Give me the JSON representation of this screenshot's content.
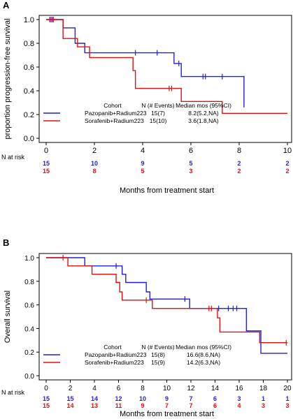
{
  "colors": {
    "blue": "#1f1fe0",
    "red": "#e01010",
    "axis": "#000000"
  },
  "chart_data": [
    {
      "type": "line",
      "panel_label": "A",
      "title": "",
      "xlabel": "Months from treatment start",
      "ylabel": "proportion progression-free survival",
      "xlim": [
        0,
        10
      ],
      "ylim": [
        0,
        1
      ],
      "x_ticks": [
        0,
        2,
        4,
        6,
        8,
        10
      ],
      "y_ticks": [
        0.0,
        0.2,
        0.4,
        0.6,
        0.8,
        1.0
      ],
      "grid": false,
      "legend": {
        "position": "lower-left",
        "header": {
          "cohort": "Cohort",
          "n": "N (# Events)",
          "mos": "Median mos (95%CI)"
        },
        "rows": [
          {
            "label": "Pazopanib+Radium223",
            "n": "15(7)",
            "mos": "8.2(5.2,NA)",
            "color": "#1f1fe0"
          },
          {
            "label": "Sorafenib+Radium223",
            "n": "15(10)",
            "mos": "3.6(1.8,NA)",
            "color": "#e01010"
          }
        ]
      },
      "series": [
        {
          "name": "Pazopanib+Radium223",
          "color": "#1f1fe0",
          "steps": [
            [
              0,
              1.0
            ],
            [
              0.7,
              0.93
            ],
            [
              1.2,
              0.8
            ],
            [
              1.6,
              0.72
            ],
            [
              5.3,
              0.63
            ],
            [
              5.6,
              0.52
            ],
            [
              8.2,
              0.26
            ]
          ],
          "censor": [
            [
              0.15,
              1.0
            ],
            [
              0.25,
              1.0
            ],
            [
              3.7,
              0.72
            ],
            [
              4.6,
              0.72
            ],
            [
              5.5,
              0.63
            ],
            [
              6.5,
              0.52
            ],
            [
              6.6,
              0.52
            ],
            [
              7.3,
              0.52
            ]
          ],
          "end_x": 8.2
        },
        {
          "name": "Sorafenib+Radium223",
          "color": "#e01010",
          "steps": [
            [
              0,
              1.0
            ],
            [
              0.7,
              0.84
            ],
            [
              1.3,
              0.77
            ],
            [
              1.8,
              0.68
            ],
            [
              3.6,
              0.57
            ],
            [
              3.7,
              0.42
            ],
            [
              5.6,
              0.31
            ],
            [
              7.3,
              0.21
            ]
          ],
          "censor": [
            [
              0.2,
              1.0
            ],
            [
              0.3,
              1.0
            ],
            [
              5.1,
              0.42
            ],
            [
              5.2,
              0.42
            ]
          ],
          "end_x": 10
        }
      ],
      "at_risk": {
        "label": "N at risk",
        "x": [
          0,
          2,
          4,
          6,
          8,
          10
        ],
        "rows": [
          {
            "color": "#1f1fe0",
            "values": [
              "15",
              "10",
              "9",
              "5",
              "2",
              "2"
            ]
          },
          {
            "color": "#e01010",
            "values": [
              "15",
              "8",
              "5",
              "3",
              "2",
              "2"
            ]
          }
        ]
      }
    },
    {
      "type": "line",
      "panel_label": "B",
      "title": "",
      "xlabel": "Months from treatment start",
      "ylabel": "Overall survival",
      "xlim": [
        0,
        20
      ],
      "ylim": [
        0,
        1
      ],
      "x_ticks": [
        0,
        2,
        4,
        6,
        8,
        10,
        12,
        14,
        16,
        18,
        20
      ],
      "y_ticks": [
        0.0,
        0.2,
        0.4,
        0.6,
        0.8,
        1.0
      ],
      "grid": false,
      "legend": {
        "position": "lower-left",
        "header": {
          "cohort": "Cohort",
          "n": "N (# Events)",
          "mos": "Median mos (95%CI)"
        },
        "rows": [
          {
            "label": "Pazopanib+Radium223",
            "n": "15(8)",
            "mos": "16.6(8.6,NA)",
            "color": "#1f1fe0"
          },
          {
            "label": "Sorafenib+Radium223",
            "n": "15(9)",
            "mos": "14.2(6.3,NA)",
            "color": "#e01010"
          }
        ]
      },
      "series": [
        {
          "name": "Pazopanib+Radium223",
          "color": "#1f1fe0",
          "steps": [
            [
              0,
              1.0
            ],
            [
              3.2,
              0.93
            ],
            [
              6.3,
              0.86
            ],
            [
              6.6,
              0.79
            ],
            [
              8.3,
              0.71
            ],
            [
              8.6,
              0.65
            ],
            [
              11.9,
              0.57
            ],
            [
              16.6,
              0.38
            ],
            [
              17.8,
              0.19
            ]
          ],
          "censor": [
            [
              5.8,
              0.93
            ],
            [
              11.5,
              0.65
            ],
            [
              14.3,
              0.57
            ],
            [
              15.1,
              0.57
            ],
            [
              15.5,
              0.57
            ],
            [
              15.8,
              0.57
            ]
          ],
          "end_x": 20
        },
        {
          "name": "Sorafenib+Radium223",
          "color": "#e01010",
          "steps": [
            [
              0,
              1.0
            ],
            [
              1.8,
              0.93
            ],
            [
              3.8,
              0.86
            ],
            [
              5.8,
              0.79
            ],
            [
              6.1,
              0.71
            ],
            [
              6.3,
              0.64
            ],
            [
              8.8,
              0.57
            ],
            [
              14.2,
              0.49
            ],
            [
              14.4,
              0.37
            ],
            [
              17.7,
              0.28
            ]
          ],
          "censor": [
            [
              1.4,
              1.0
            ],
            [
              8.3,
              0.64
            ],
            [
              13.5,
              0.57
            ],
            [
              13.7,
              0.57
            ],
            [
              19.9,
              0.28
            ]
          ],
          "end_x": 20
        }
      ],
      "at_risk": {
        "label": "N at risk",
        "x": [
          0,
          2,
          4,
          6,
          8,
          10,
          12,
          14,
          16,
          18,
          20
        ],
        "rows": [
          {
            "color": "#1f1fe0",
            "values": [
              "15",
              "15",
              "14",
              "12",
              "10",
              "9",
              "7",
              "6",
              "3",
              "1",
              "1"
            ]
          },
          {
            "color": "#e01010",
            "values": [
              "15",
              "14",
              "13",
              "11",
              "9",
              "7",
              "7",
              "6",
              "4",
              "3",
              "3"
            ]
          }
        ]
      }
    }
  ]
}
